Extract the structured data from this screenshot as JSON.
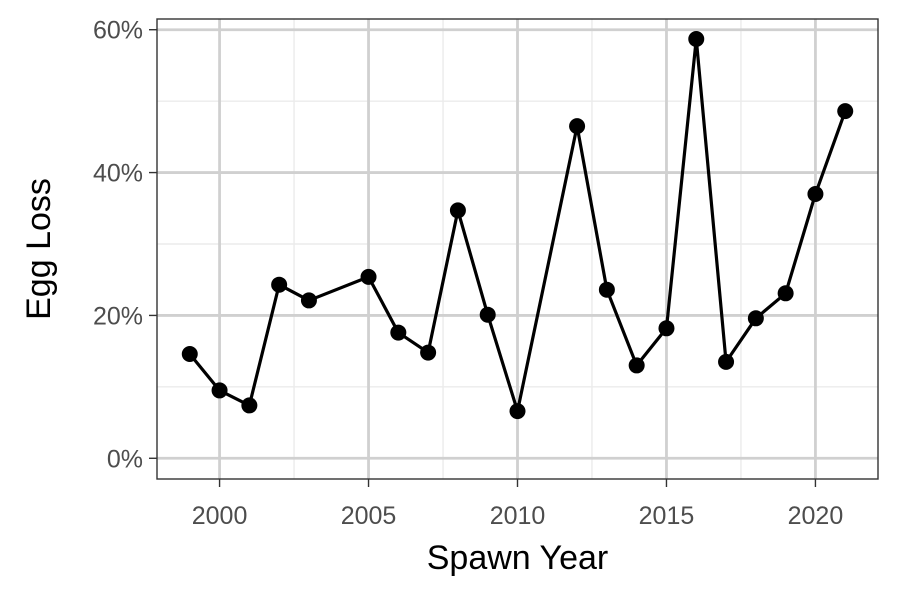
{
  "chart_data": {
    "type": "line",
    "title": "",
    "xlabel": "Spawn Year",
    "ylabel": "Egg Loss",
    "xlim": [
      1997.9,
      2022.1
    ],
    "ylim": [
      -2.9,
      61.5
    ],
    "x_ticks": [
      2000,
      2005,
      2010,
      2015,
      2020
    ],
    "x_tick_labels": [
      "2000",
      "2005",
      "2010",
      "2015",
      "2020"
    ],
    "y_ticks": [
      0,
      20,
      40,
      60
    ],
    "y_tick_labels": [
      "0%",
      "20%",
      "40%",
      "60%"
    ],
    "grid": true,
    "legend": "none",
    "series": [
      {
        "x": [
          1999,
          2000,
          2001,
          2002,
          2003,
          2005,
          2006,
          2007,
          2008,
          2009,
          2010,
          2012,
          2013,
          2014,
          2015,
          2016,
          2017,
          2018,
          2019,
          2020,
          2021
        ],
        "values": [
          14.6,
          9.5,
          7.4,
          24.3,
          22.1,
          25.4,
          17.6,
          14.8,
          34.7,
          20.1,
          6.6,
          46.5,
          23.6,
          13.0,
          18.2,
          58.7,
          13.5,
          19.6,
          23.1,
          37.0,
          48.6
        ],
        "color": "#000000"
      }
    ]
  }
}
